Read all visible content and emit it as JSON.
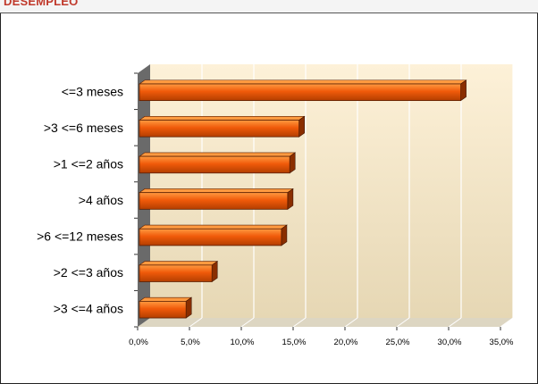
{
  "chart_data": {
    "type": "bar",
    "orientation": "horizontal",
    "title": "DESEMPLEO",
    "categories": [
      "<=3 meses",
      ">3 <=6 meses",
      ">1 <=2 años",
      ">4 años",
      ">6 <=12 meses",
      ">2 <=3 años",
      ">3 <=4 años"
    ],
    "values": [
      31.0,
      15.4,
      14.5,
      14.3,
      13.7,
      7.0,
      4.5
    ],
    "xlim": [
      0,
      35
    ],
    "x_ticks": [
      "0,0%",
      "5,0%",
      "10,0%",
      "15,0%",
      "20,0%",
      "25,0%",
      "30,0%",
      "35,0%"
    ],
    "grid": true,
    "legend": "none",
    "colors": {
      "bar": "#f05a0a",
      "bar_top": "#ff9a40",
      "bar_side": "#8a2e00",
      "plot_bg_top": "#fdf1d8",
      "plot_bg_bottom": "#e6d7b4",
      "floor": "#ddd6c2",
      "left_wall": "#6a6a6a",
      "title": "#c0392b"
    }
  }
}
